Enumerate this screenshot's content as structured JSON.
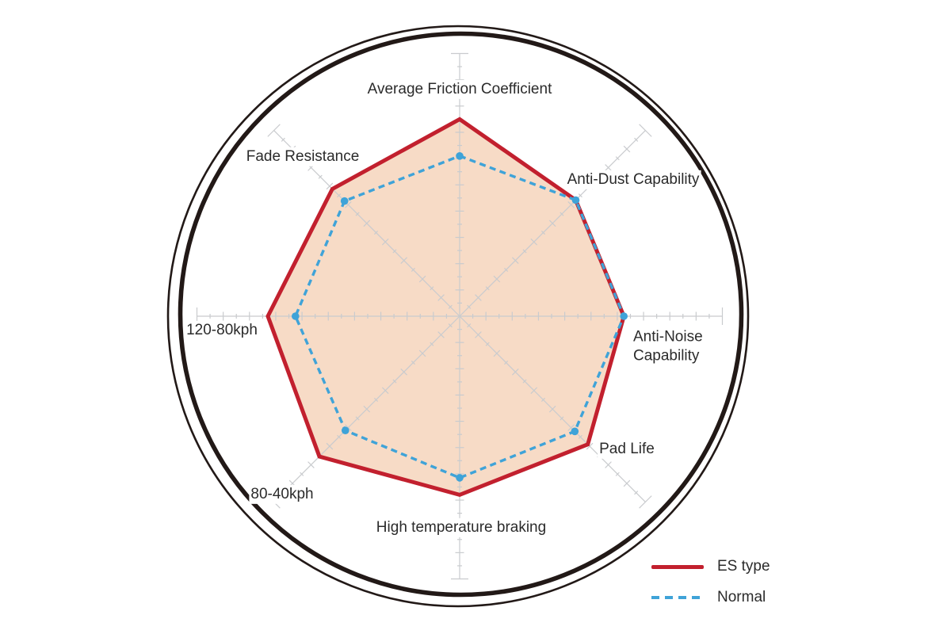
{
  "page": {
    "background": "#ffffff",
    "description": "Brake pad performance radar chart comparing ES type pads vs Normal pads"
  },
  "chart_data": {
    "type": "radar",
    "axes": [
      "Average Friction Coefficient",
      "Anti-Dust Capability",
      "Anti-Noise Capability",
      "Pad Life",
      "High temperature braking",
      "80-40kph",
      "120-80kph",
      "Fade Resistance"
    ],
    "scale": {
      "min": 0,
      "max": 10,
      "minor_tick_step": 0.5,
      "major_tick_step": 1,
      "gridlines": false
    },
    "series": [
      {
        "name": "ES type",
        "style": "solid",
        "color": "#c2202e",
        "fill_color": "#f7dbc6",
        "values": [
          7.5,
          6.25,
          6.25,
          6.9,
          6.8,
          7.55,
          7.3,
          6.85
        ]
      },
      {
        "name": "Normal",
        "style": "dashed",
        "color": "#3fa3d8",
        "marker": "dot",
        "values": [
          6.1,
          6.25,
          6.25,
          6.2,
          6.15,
          6.15,
          6.25,
          6.2
        ]
      }
    ],
    "legend_position": "bottom-right",
    "decor": {
      "outer_ring_color": "#221917",
      "axis_color": "#c9cbce"
    }
  }
}
